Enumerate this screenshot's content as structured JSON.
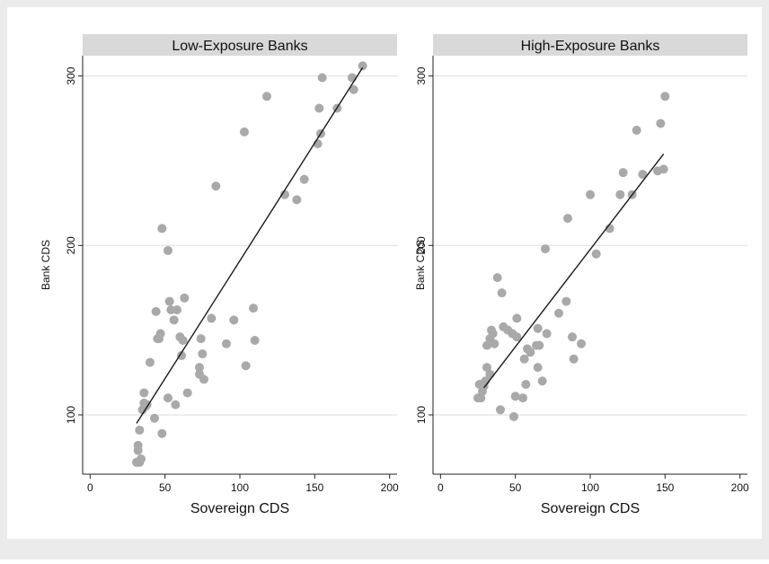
{
  "figure": {
    "background": "#ebebeb",
    "plot_background": "#ffffff",
    "strip_color": "#d9d9d9",
    "point_color": "#a9a9a9",
    "line_color": "#1a1a1a"
  },
  "chart_data": [
    {
      "type": "scatter",
      "title": "Low-Exposure Banks",
      "xlabel": "Sovereign CDS",
      "ylabel": "Bank CDS",
      "xlim": [
        -5,
        205
      ],
      "ylim": [
        65,
        312
      ],
      "xticks": [
        0,
        50,
        100,
        150,
        200
      ],
      "yticks": [
        100,
        200,
        300
      ],
      "grid": "horizontal",
      "fit_line": {
        "x": [
          31,
          182
        ],
        "y": [
          95,
          305
        ]
      },
      "points": [
        {
          "x": 31,
          "y": 72
        },
        {
          "x": 32,
          "y": 72
        },
        {
          "x": 33,
          "y": 72
        },
        {
          "x": 34,
          "y": 74
        },
        {
          "x": 32,
          "y": 79
        },
        {
          "x": 32,
          "y": 82
        },
        {
          "x": 33,
          "y": 91
        },
        {
          "x": 35,
          "y": 103
        },
        {
          "x": 36,
          "y": 107
        },
        {
          "x": 37,
          "y": 105
        },
        {
          "x": 36,
          "y": 113
        },
        {
          "x": 38,
          "y": 106
        },
        {
          "x": 40,
          "y": 131
        },
        {
          "x": 43,
          "y": 98
        },
        {
          "x": 44,
          "y": 161
        },
        {
          "x": 45,
          "y": 145
        },
        {
          "x": 46,
          "y": 145
        },
        {
          "x": 47,
          "y": 148
        },
        {
          "x": 48,
          "y": 210
        },
        {
          "x": 48,
          "y": 89
        },
        {
          "x": 52,
          "y": 110
        },
        {
          "x": 52,
          "y": 197
        },
        {
          "x": 53,
          "y": 167
        },
        {
          "x": 54,
          "y": 162
        },
        {
          "x": 56,
          "y": 156
        },
        {
          "x": 57,
          "y": 106
        },
        {
          "x": 58,
          "y": 162
        },
        {
          "x": 60,
          "y": 146
        },
        {
          "x": 61,
          "y": 135
        },
        {
          "x": 62,
          "y": 144
        },
        {
          "x": 63,
          "y": 169
        },
        {
          "x": 65,
          "y": 113
        },
        {
          "x": 73,
          "y": 128
        },
        {
          "x": 73,
          "y": 124
        },
        {
          "x": 74,
          "y": 145
        },
        {
          "x": 75,
          "y": 136
        },
        {
          "x": 76,
          "y": 121
        },
        {
          "x": 81,
          "y": 157
        },
        {
          "x": 84,
          "y": 235
        },
        {
          "x": 91,
          "y": 142
        },
        {
          "x": 96,
          "y": 156
        },
        {
          "x": 103,
          "y": 267
        },
        {
          "x": 104,
          "y": 129
        },
        {
          "x": 109,
          "y": 163
        },
        {
          "x": 110,
          "y": 144
        },
        {
          "x": 118,
          "y": 288
        },
        {
          "x": 130,
          "y": 230
        },
        {
          "x": 138,
          "y": 227
        },
        {
          "x": 143,
          "y": 239
        },
        {
          "x": 152,
          "y": 260
        },
        {
          "x": 153,
          "y": 281
        },
        {
          "x": 154,
          "y": 266
        },
        {
          "x": 155,
          "y": 299
        },
        {
          "x": 165,
          "y": 281
        },
        {
          "x": 175,
          "y": 299
        },
        {
          "x": 176,
          "y": 292
        },
        {
          "x": 182,
          "y": 306
        }
      ]
    },
    {
      "type": "scatter",
      "title": "High-Exposure Banks",
      "xlabel": "Sovereign CDS",
      "ylabel": "Bank CDS",
      "xlim": [
        -5,
        205
      ],
      "ylim": [
        65,
        312
      ],
      "xticks": [
        0,
        50,
        100,
        150,
        200
      ],
      "yticks": [
        100,
        200,
        300
      ],
      "grid": "horizontal",
      "fit_line": {
        "x": [
          29,
          149
        ],
        "y": [
          116,
          254
        ]
      },
      "points": [
        {
          "x": 25,
          "y": 110
        },
        {
          "x": 26,
          "y": 118
        },
        {
          "x": 27,
          "y": 110
        },
        {
          "x": 28,
          "y": 114
        },
        {
          "x": 29,
          "y": 117
        },
        {
          "x": 30,
          "y": 120
        },
        {
          "x": 31,
          "y": 128
        },
        {
          "x": 31,
          "y": 141
        },
        {
          "x": 33,
          "y": 124
        },
        {
          "x": 33,
          "y": 145
        },
        {
          "x": 34,
          "y": 150
        },
        {
          "x": 35,
          "y": 148
        },
        {
          "x": 36,
          "y": 142
        },
        {
          "x": 38,
          "y": 181
        },
        {
          "x": 40,
          "y": 103
        },
        {
          "x": 41,
          "y": 172
        },
        {
          "x": 42,
          "y": 152
        },
        {
          "x": 45,
          "y": 150
        },
        {
          "x": 48,
          "y": 148
        },
        {
          "x": 49,
          "y": 99
        },
        {
          "x": 50,
          "y": 111
        },
        {
          "x": 51,
          "y": 146
        },
        {
          "x": 51,
          "y": 157
        },
        {
          "x": 55,
          "y": 110
        },
        {
          "x": 56,
          "y": 133
        },
        {
          "x": 57,
          "y": 118
        },
        {
          "x": 58,
          "y": 139
        },
        {
          "x": 60,
          "y": 137
        },
        {
          "x": 64,
          "y": 141
        },
        {
          "x": 65,
          "y": 128
        },
        {
          "x": 65,
          "y": 151
        },
        {
          "x": 66,
          "y": 141
        },
        {
          "x": 68,
          "y": 120
        },
        {
          "x": 70,
          "y": 198
        },
        {
          "x": 71,
          "y": 148
        },
        {
          "x": 79,
          "y": 160
        },
        {
          "x": 84,
          "y": 167
        },
        {
          "x": 85,
          "y": 216
        },
        {
          "x": 88,
          "y": 146
        },
        {
          "x": 89,
          "y": 133
        },
        {
          "x": 94,
          "y": 142
        },
        {
          "x": 100,
          "y": 230
        },
        {
          "x": 104,
          "y": 195
        },
        {
          "x": 113,
          "y": 210
        },
        {
          "x": 120,
          "y": 230
        },
        {
          "x": 122,
          "y": 243
        },
        {
          "x": 128,
          "y": 230
        },
        {
          "x": 131,
          "y": 268
        },
        {
          "x": 135,
          "y": 242
        },
        {
          "x": 145,
          "y": 244
        },
        {
          "x": 147,
          "y": 272
        },
        {
          "x": 149,
          "y": 245
        },
        {
          "x": 150,
          "y": 288
        }
      ]
    }
  ]
}
